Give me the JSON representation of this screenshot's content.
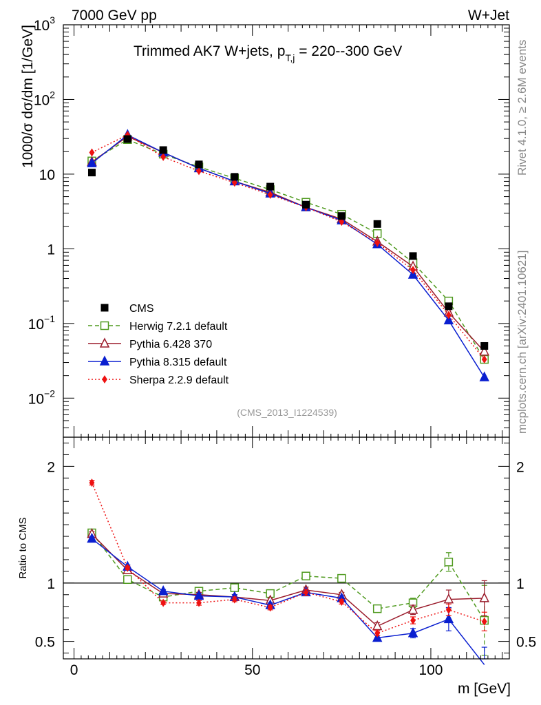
{
  "header": {
    "left": "7000 GeV pp",
    "right": "W+Jet"
  },
  "side_labels": {
    "rivet": "Rivet 4.1.0, ≥ 2.6M events",
    "mcplots": "mcplots.cern.ch [arXiv:2401.10621]"
  },
  "chart_data": {
    "type": "line",
    "title": "Trimmed AK7 W+jets, p_T,j = 220--300 GeV",
    "title_parts": {
      "main": "Trimmed AK7 W+jets, p",
      "sub": "T,j",
      "tail": " = 220--300 GeV"
    },
    "analysis_id": "(CMS_2013_I1224539)",
    "xlabel": "m [GeV]",
    "xlim": [
      -3,
      122
    ],
    "x_ticks": [
      0,
      50,
      100
    ],
    "x_tick_labels": [
      "0",
      "50",
      "100"
    ],
    "x": [
      5,
      15,
      25,
      35,
      45,
      55,
      65,
      75,
      85,
      95,
      105,
      115
    ],
    "main": {
      "ylabel": "1000/σ dσ/dm [1/GeV]",
      "yscale": "log",
      "ylim": [
        0.003,
        1000
      ],
      "y_tick_labels": [
        {
          "value": 0.01,
          "base": "10",
          "exp": "−2"
        },
        {
          "value": 0.1,
          "base": "10",
          "exp": "−1"
        },
        {
          "value": 1,
          "base": "1",
          "exp": ""
        },
        {
          "value": 10,
          "base": "10",
          "exp": ""
        },
        {
          "value": 100,
          "base": "10",
          "exp": "2"
        },
        {
          "value": 1000,
          "base": "10",
          "exp": "3"
        }
      ]
    },
    "ratio": {
      "ylabel": "Ratio to CMS",
      "ylim": [
        0.35,
        2.25
      ],
      "y_ticks": [
        0.5,
        1,
        2
      ],
      "y_tick_labels": [
        "0.5",
        "1",
        "2"
      ],
      "reference": 1
    },
    "series": [
      {
        "name": "CMS",
        "color": "#000000",
        "marker": "square-filled",
        "line": "none",
        "values": [
          10.5,
          29.5,
          21,
          13.5,
          9.2,
          6.8,
          3.9,
          2.75,
          2.15,
          0.8,
          0.17,
          0.05
        ],
        "ratio": [
          1,
          1,
          1,
          1,
          1,
          1,
          1,
          1,
          1,
          1,
          1,
          1
        ],
        "ratio_err": [
          0,
          0,
          0,
          0,
          0,
          0,
          0,
          0,
          0,
          0,
          0,
          0
        ]
      },
      {
        "name": "Herwig 7.2.1 default",
        "color": "#4f9a1f",
        "marker": "square-open",
        "line": "dashed",
        "values": [
          15,
          29,
          18.5,
          12.5,
          8.8,
          6.2,
          4.2,
          2.9,
          1.6,
          0.65,
          0.2,
          0.033
        ],
        "ratio": [
          1.43,
          1.03,
          0.88,
          0.93,
          0.96,
          0.91,
          1.06,
          1.04,
          0.78,
          0.83,
          1.18,
          0.68
        ],
        "ratio_err": [
          0.02,
          0.015,
          0.015,
          0.02,
          0.02,
          0.02,
          0.025,
          0.02,
          0.03,
          0.04,
          0.08,
          0.3
        ]
      },
      {
        "name": "Pythia 6.428 370",
        "color": "#9b1c2c",
        "marker": "triangle-open",
        "line": "solid",
        "values": [
          14.5,
          32,
          19.5,
          12,
          8,
          5.7,
          3.6,
          2.5,
          1.25,
          0.58,
          0.14,
          0.042
        ],
        "ratio": [
          1.42,
          1.11,
          0.91,
          0.9,
          0.88,
          0.85,
          0.94,
          0.9,
          0.63,
          0.77,
          0.86,
          0.87
        ],
        "ratio_err": [
          0.02,
          0.015,
          0.015,
          0.02,
          0.02,
          0.02,
          0.025,
          0.02,
          0.03,
          0.04,
          0.08,
          0.15
        ]
      },
      {
        "name": "Pythia 8.315 default",
        "color": "#0a1fd0",
        "marker": "triangle-filled",
        "line": "solid",
        "values": [
          14,
          33.5,
          19.5,
          12,
          8,
          5.5,
          3.6,
          2.4,
          1.15,
          0.45,
          0.11,
          0.019
        ],
        "ratio": [
          1.38,
          1.14,
          0.93,
          0.89,
          0.88,
          0.81,
          0.92,
          0.87,
          0.53,
          0.57,
          0.69,
          0.3
        ],
        "ratio_err": [
          0.02,
          0.015,
          0.015,
          0.02,
          0.02,
          0.02,
          0.025,
          0.02,
          0.02,
          0.04,
          0.1,
          0.15
        ]
      },
      {
        "name": "Sherpa 2.2.9 default",
        "color": "#ee1111",
        "marker": "diamond-filled",
        "line": "dotted",
        "values": [
          19.5,
          33.5,
          17,
          11,
          7.7,
          5.3,
          3.6,
          2.3,
          1.2,
          0.52,
          0.13,
          0.033
        ],
        "ratio": [
          1.86,
          1.13,
          0.83,
          0.83,
          0.86,
          0.79,
          0.92,
          0.84,
          0.57,
          0.68,
          0.77,
          0.67
        ],
        "ratio_err": [
          0.02,
          0.015,
          0.015,
          0.02,
          0.02,
          0.02,
          0.025,
          0.02,
          0.02,
          0.03,
          0.05,
          0.08
        ]
      }
    ]
  }
}
